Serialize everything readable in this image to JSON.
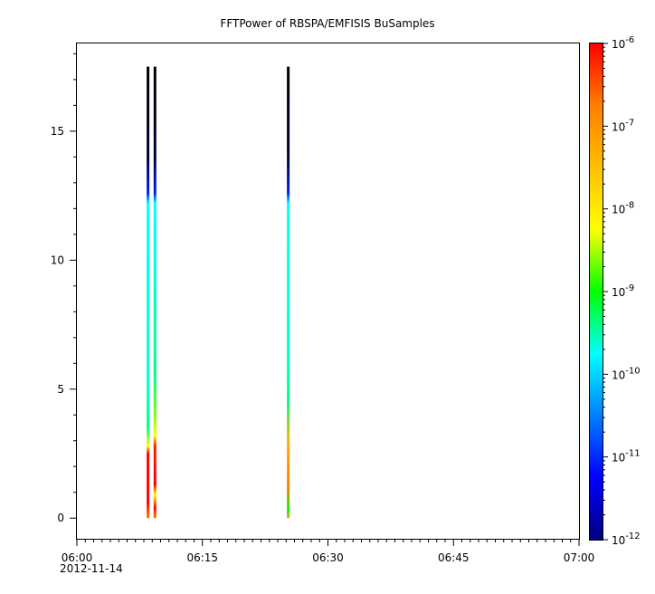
{
  "chart_data": {
    "type": "heatmap",
    "title": "FFTPower of RBSPA/EMFISIS  BuSamples",
    "xlabel": "",
    "ylabel": "",
    "x_ticks": [
      "06:00",
      "06:15",
      "06:30",
      "06:45",
      "07:00"
    ],
    "x_date_label": "2012-11-14",
    "xlim": [
      "06:00",
      "07:00"
    ],
    "y_ticks": [
      0,
      5,
      10,
      15
    ],
    "ylim": [
      -0.8,
      18.4
    ],
    "colorbar": {
      "scale": "log",
      "range": [
        1e-12,
        1e-06
      ],
      "tick_values": [
        1e-12,
        1e-11,
        1e-10,
        1e-09,
        1e-08,
        1e-07,
        1e-06
      ],
      "tick_base": "10",
      "tick_exponents": [
        "-12",
        "-11",
        "-10",
        "-9",
        "-8",
        "-7",
        "-6"
      ],
      "colormap": [
        "#00007f",
        "#0000ff",
        "#00ffff",
        "#00ff00",
        "#ffff00",
        "#ff7f00",
        "#ff0000"
      ]
    },
    "series": [
      {
        "time": "06:08:30",
        "profile": [
          [
            0.0,
            "#ff8000"
          ],
          [
            0.6,
            "#ff0000"
          ],
          [
            2.5,
            "#ff0000"
          ],
          [
            2.8,
            "#ffff00"
          ],
          [
            3.5,
            "#00ff80"
          ],
          [
            5.0,
            "#00ffcc"
          ],
          [
            12.2,
            "#00ffff"
          ],
          [
            12.6,
            "#0020ff"
          ],
          [
            14.0,
            "#000033"
          ],
          [
            17.5,
            "#000000"
          ]
        ]
      },
      {
        "time": "06:09:20",
        "profile": [
          [
            0.0,
            "#ff8000"
          ],
          [
            0.4,
            "#ff0000"
          ],
          [
            0.9,
            "#ffff00"
          ],
          [
            1.3,
            "#ff0000"
          ],
          [
            2.8,
            "#ff2000"
          ],
          [
            3.2,
            "#ffff00"
          ],
          [
            4.0,
            "#80ff00"
          ],
          [
            5.5,
            "#00ff80"
          ],
          [
            12.2,
            "#00ffff"
          ],
          [
            12.6,
            "#0020ff"
          ],
          [
            14.0,
            "#000033"
          ],
          [
            17.5,
            "#000000"
          ]
        ]
      },
      {
        "time": "06:25:15",
        "profile": [
          [
            0.0,
            "#ffa000"
          ],
          [
            0.3,
            "#00ff00"
          ],
          [
            1.2,
            "#ff8000"
          ],
          [
            3.0,
            "#ffb000"
          ],
          [
            4.5,
            "#00ff80"
          ],
          [
            6.0,
            "#00ffcc"
          ],
          [
            12.2,
            "#00ffff"
          ],
          [
            12.6,
            "#0020ff"
          ],
          [
            14.0,
            "#000033"
          ],
          [
            17.5,
            "#000000"
          ]
        ]
      }
    ]
  }
}
